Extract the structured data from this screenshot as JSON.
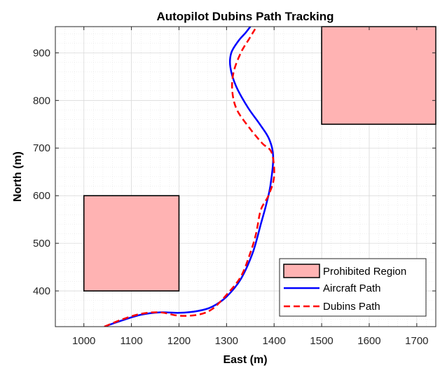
{
  "chart_data": {
    "type": "line",
    "title": "Autopilot Dubins Path Tracking",
    "xlabel": "East (m)",
    "ylabel": "North (m)",
    "xlim": [
      940,
      1740
    ],
    "ylim": [
      325,
      955
    ],
    "x_ticks": [
      1000,
      1100,
      1200,
      1300,
      1400,
      1500,
      1600,
      1700
    ],
    "y_ticks": [
      400,
      500,
      600,
      700,
      800,
      900
    ],
    "grid": true,
    "minor_grid": true,
    "legend_position": "bottom-right",
    "regions": [
      {
        "name": "Prohibited Region",
        "x": [
          1000,
          1200
        ],
        "y": [
          400,
          600
        ]
      },
      {
        "name": "Prohibited Region",
        "x": [
          1500,
          1740
        ],
        "y": [
          750,
          955
        ]
      }
    ],
    "series": [
      {
        "name": "Aircraft Path",
        "color": "#0000ff",
        "style": "solid",
        "x": [
          1043,
          1080,
          1120,
          1160,
          1200,
          1240,
          1270,
          1300,
          1330,
          1355,
          1372,
          1383,
          1392,
          1398,
          1390,
          1370,
          1345,
          1320,
          1308,
          1310,
          1325,
          1340,
          1350
        ],
        "y": [
          325,
          338,
          350,
          355,
          354,
          358,
          367,
          388,
          425,
          480,
          540,
          580,
          620,
          680,
          718,
          750,
          785,
          830,
          870,
          900,
          925,
          942,
          955
        ]
      },
      {
        "name": "Dubins Path",
        "color": "#ff0000",
        "style": "dashed",
        "x": [
          1043,
          1080,
          1120,
          1160,
          1200,
          1240,
          1270,
          1300,
          1330,
          1350,
          1362,
          1372,
          1388,
          1400,
          1395,
          1375,
          1350,
          1322,
          1312,
          1315,
          1330,
          1348,
          1360
        ],
        "y": [
          325,
          340,
          352,
          355,
          348,
          350,
          362,
          392,
          430,
          480,
          520,
          570,
          600,
          640,
          690,
          710,
          740,
          780,
          820,
          860,
          900,
          930,
          950
        ]
      }
    ]
  },
  "legend": {
    "items": [
      {
        "label": "Prohibited Region",
        "color": "#ffb3b3"
      },
      {
        "label": "Aircraft Path",
        "color": "#0000ff"
      },
      {
        "label": "Dubins Path",
        "color": "#ff0000"
      }
    ]
  }
}
